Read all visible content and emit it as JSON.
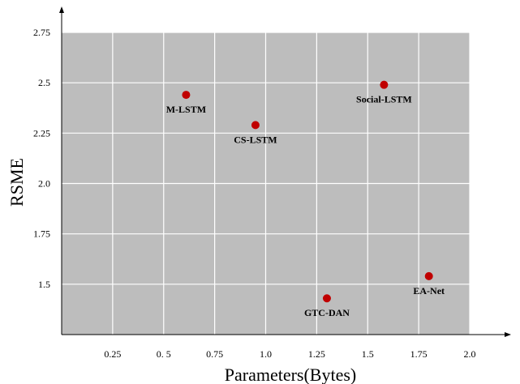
{
  "chart_data": {
    "type": "scatter",
    "title": "",
    "xlabel": "Parameters(Bytes)",
    "ylabel": "RSME",
    "xlim": [
      0,
      2.0
    ],
    "ylim": [
      1.25,
      2.75
    ],
    "xticks": [
      0.25,
      0.5,
      0.75,
      1.0,
      1.25,
      1.5,
      1.75,
      2.0
    ],
    "xtick_labels": [
      "0.25",
      "0. 5",
      "0.75",
      "1.0",
      "1.25",
      "1.5",
      "1.75",
      "2.0"
    ],
    "yticks": [
      1.5,
      1.75,
      2.0,
      2.25,
      2.5,
      2.75
    ],
    "ytick_labels": [
      "1.5",
      "1.75",
      "2.0",
      "2.25",
      "2.5",
      "2.75"
    ],
    "grid": true,
    "points": [
      {
        "label": "M-LSTM",
        "x": 0.61,
        "y": 2.44
      },
      {
        "label": "CS-LSTM",
        "x": 0.95,
        "y": 2.29
      },
      {
        "label": "Social-LSTM",
        "x": 1.58,
        "y": 2.49
      },
      {
        "label": "GTC-DAN",
        "x": 1.3,
        "y": 1.43
      },
      {
        "label": "EA-Net",
        "x": 1.8,
        "y": 1.54
      }
    ],
    "colors": {
      "plot_bg": "#bdbdbd",
      "grid": "#ffffff",
      "marker": "#c00000"
    }
  }
}
